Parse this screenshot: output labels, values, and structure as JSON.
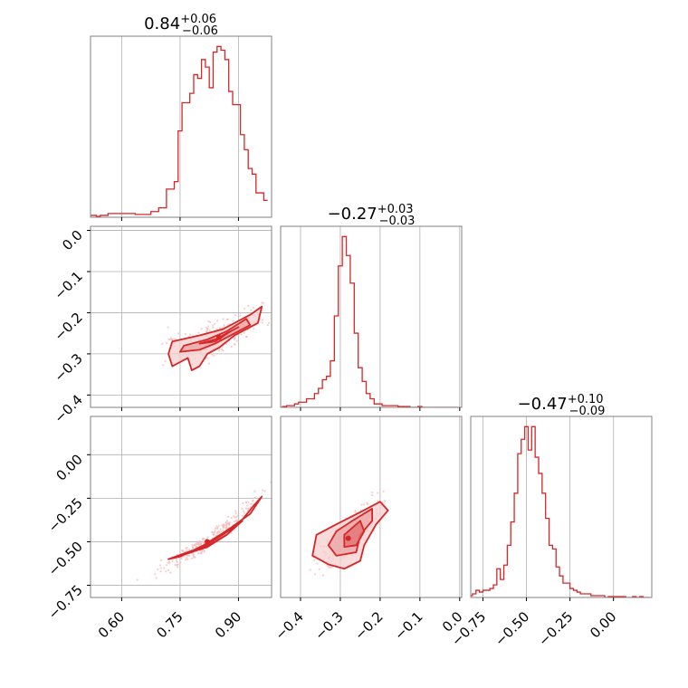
{
  "colors": {
    "accent": "#d62728",
    "fill_light": "#f5cfcf",
    "fill_mid": "#eba3a3",
    "scatter": "#f3b9b9",
    "grid": "#b0b0b0",
    "frame": "#808080"
  },
  "chart_data": [
    {
      "type": "histogram",
      "panel": "diag-1",
      "title": {
        "main": "0.84",
        "upper": "+0.06",
        "lower": "−0.06"
      },
      "x": [
        0.52,
        0.53,
        0.54,
        0.55,
        0.56,
        0.57,
        0.58,
        0.59,
        0.6,
        0.61,
        0.62,
        0.63,
        0.64,
        0.65,
        0.66,
        0.67,
        0.68,
        0.69,
        0.7,
        0.71,
        0.72,
        0.73,
        0.74,
        0.75,
        0.76,
        0.77,
        0.78,
        0.79,
        0.8,
        0.81,
        0.82,
        0.83,
        0.84,
        0.85,
        0.86,
        0.87,
        0.88,
        0.89,
        0.9,
        0.91,
        0.92,
        0.93,
        0.94,
        0.95,
        0.96,
        0.97
      ],
      "values": [
        0.01,
        0.01,
        0.005,
        0.01,
        0.01,
        0.02,
        0.02,
        0.02,
        0.02,
        0.02,
        0.02,
        0.02,
        0.015,
        0.015,
        0.015,
        0.015,
        0.03,
        0.03,
        0.05,
        0.05,
        0.15,
        0.15,
        0.19,
        0.46,
        0.61,
        0.61,
        0.66,
        0.76,
        0.74,
        0.84,
        0.8,
        0.69,
        0.88,
        0.91,
        0.89,
        0.84,
        0.67,
        0.6,
        0.6,
        0.44,
        0.36,
        0.26,
        0.23,
        0.13,
        0.13,
        0.09
      ],
      "xlim": [
        0.52,
        0.985
      ],
      "xticks": [
        0.6,
        0.75,
        0.9
      ]
    },
    {
      "type": "scatter",
      "panel": "pair-2-1",
      "contours": [
        [
          [
            0.73,
            -0.33
          ],
          [
            0.72,
            -0.3
          ],
          [
            0.73,
            -0.27
          ],
          [
            0.8,
            -0.255
          ],
          [
            0.86,
            -0.24
          ],
          [
            0.93,
            -0.205
          ],
          [
            0.96,
            -0.185
          ],
          [
            0.95,
            -0.225
          ],
          [
            0.89,
            -0.255
          ],
          [
            0.85,
            -0.285
          ],
          [
            0.82,
            -0.3
          ],
          [
            0.8,
            -0.33
          ],
          [
            0.78,
            -0.34
          ],
          [
            0.77,
            -0.31
          ],
          [
            0.75,
            -0.32
          ]
        ],
        [
          [
            0.75,
            -0.295
          ],
          [
            0.76,
            -0.28
          ],
          [
            0.82,
            -0.265
          ],
          [
            0.87,
            -0.245
          ],
          [
            0.92,
            -0.215
          ],
          [
            0.93,
            -0.23
          ],
          [
            0.88,
            -0.255
          ],
          [
            0.84,
            -0.275
          ],
          [
            0.8,
            -0.29
          ]
        ],
        [
          [
            0.8,
            -0.275
          ],
          [
            0.84,
            -0.265
          ],
          [
            0.9,
            -0.235
          ],
          [
            0.88,
            -0.245
          ],
          [
            0.84,
            -0.27
          ]
        ]
      ],
      "mode": [
        0.85,
        -0.26
      ],
      "xlim": [
        0.52,
        0.985
      ],
      "ylim": [
        -0.43,
        0.01
      ],
      "xticks": [
        0.6,
        0.75,
        0.9
      ],
      "yticks": [
        0.0,
        -0.1,
        -0.2,
        -0.3,
        -0.4
      ],
      "ytick_labels": [
        "0.0",
        "−0.1",
        "−0.2",
        "−0.3",
        "−0.4"
      ]
    },
    {
      "type": "histogram",
      "panel": "diag-2",
      "title": {
        "main": "−0.27",
        "upper": "+0.03",
        "lower": "−0.03"
      },
      "x": [
        -0.45,
        -0.44,
        -0.43,
        -0.42,
        -0.41,
        -0.4,
        -0.39,
        -0.38,
        -0.37,
        -0.36,
        -0.35,
        -0.34,
        -0.33,
        -0.32,
        -0.31,
        -0.3,
        -0.29,
        -0.28,
        -0.27,
        -0.26,
        -0.25,
        -0.24,
        -0.23,
        -0.22,
        -0.21,
        -0.2,
        -0.19,
        -0.18,
        -0.17,
        -0.16,
        -0.15,
        -0.14,
        -0.13,
        -0.12,
        -0.11,
        -0.1,
        -0.09,
        -0.08,
        -0.07,
        -0.06,
        -0.05,
        -0.04,
        -0.03,
        -0.02,
        -0.01
      ],
      "values": [
        0.0,
        0.005,
        0.01,
        0.01,
        0.02,
        0.03,
        0.03,
        0.05,
        0.05,
        0.08,
        0.11,
        0.16,
        0.18,
        0.27,
        0.53,
        0.82,
        0.99,
        0.88,
        0.72,
        0.43,
        0.23,
        0.15,
        0.08,
        0.05,
        0.02,
        0.02,
        0.01,
        0.01,
        0.01,
        0.01,
        0.005,
        0.005,
        0.005,
        0.0,
        0.0,
        0.005,
        0.0,
        0.0,
        0.0,
        0.0,
        0.0,
        0.0,
        0.0,
        0.0,
        0.0
      ],
      "xlim": [
        -0.45,
        0.005
      ],
      "xticks": [
        -0.4,
        -0.3,
        -0.2,
        -0.1,
        0.0
      ]
    },
    {
      "type": "scatter",
      "panel": "pair-3-1",
      "contours": [
        [
          [
            0.72,
            -0.6
          ],
          [
            0.8,
            -0.535
          ],
          [
            0.86,
            -0.45
          ],
          [
            0.9,
            -0.4
          ],
          [
            0.94,
            -0.29
          ],
          [
            0.96,
            -0.24
          ],
          [
            0.93,
            -0.34
          ],
          [
            0.88,
            -0.42
          ],
          [
            0.82,
            -0.51
          ],
          [
            0.75,
            -0.585
          ]
        ],
        [
          [
            0.75,
            -0.58
          ],
          [
            0.82,
            -0.53
          ],
          [
            0.87,
            -0.46
          ],
          [
            0.91,
            -0.38
          ],
          [
            0.88,
            -0.43
          ],
          [
            0.83,
            -0.5
          ],
          [
            0.78,
            -0.56
          ]
        ],
        [
          [
            0.8,
            -0.545
          ],
          [
            0.84,
            -0.5
          ],
          [
            0.87,
            -0.46
          ],
          [
            0.85,
            -0.485
          ],
          [
            0.82,
            -0.525
          ]
        ]
      ],
      "mode": [
        0.82,
        -0.5
      ],
      "xlim": [
        0.52,
        0.985
      ],
      "ylim": [
        -0.82,
        0.22
      ],
      "xticks": [
        0.6,
        0.75,
        0.9
      ],
      "yticks": [
        0.0,
        -0.25,
        -0.5,
        -0.75
      ],
      "ytick_labels": [
        "0.00",
        "−0.25",
        "−0.50",
        "−0.75"
      ],
      "xtick_labels": [
        "0.60",
        "0.75",
        "0.90"
      ]
    },
    {
      "type": "scatter",
      "panel": "pair-3-2",
      "contours": [
        [
          [
            -0.33,
            -0.63
          ],
          [
            -0.37,
            -0.58
          ],
          [
            -0.36,
            -0.46
          ],
          [
            -0.31,
            -0.4
          ],
          [
            -0.25,
            -0.33
          ],
          [
            -0.2,
            -0.27
          ],
          [
            -0.18,
            -0.32
          ],
          [
            -0.21,
            -0.4
          ],
          [
            -0.24,
            -0.52
          ],
          [
            -0.25,
            -0.61
          ],
          [
            -0.29,
            -0.655
          ]
        ],
        [
          [
            -0.31,
            -0.58
          ],
          [
            -0.33,
            -0.52
          ],
          [
            -0.31,
            -0.44
          ],
          [
            -0.27,
            -0.38
          ],
          [
            -0.22,
            -0.31
          ],
          [
            -0.22,
            -0.38
          ],
          [
            -0.25,
            -0.46
          ],
          [
            -0.26,
            -0.56
          ]
        ],
        [
          [
            -0.29,
            -0.53
          ],
          [
            -0.29,
            -0.46
          ],
          [
            -0.25,
            -0.38
          ],
          [
            -0.24,
            -0.44
          ],
          [
            -0.26,
            -0.52
          ]
        ]
      ],
      "mode": [
        -0.28,
        -0.48
      ],
      "xlim": [
        -0.45,
        0.005
      ],
      "ylim": [
        -0.82,
        0.22
      ],
      "xticks": [
        -0.4,
        -0.3,
        -0.2,
        -0.1,
        0.0
      ],
      "xtick_labels": [
        "−0.4",
        "−0.3",
        "−0.2",
        "−0.1",
        "0.0"
      ]
    },
    {
      "type": "histogram",
      "panel": "diag-3",
      "title": {
        "main": "−0.47",
        "upper": "+0.10",
        "lower": "−0.09"
      },
      "x": [
        -0.82,
        -0.8,
        -0.78,
        -0.76,
        -0.74,
        -0.72,
        -0.7,
        -0.68,
        -0.66,
        -0.64,
        -0.62,
        -0.6,
        -0.58,
        -0.56,
        -0.54,
        -0.52,
        -0.5,
        -0.48,
        -0.46,
        -0.44,
        -0.42,
        -0.4,
        -0.38,
        -0.36,
        -0.34,
        -0.32,
        -0.3,
        -0.28,
        -0.26,
        -0.24,
        -0.22,
        -0.2,
        -0.18,
        -0.16,
        -0.14,
        -0.12,
        -0.1,
        -0.08,
        -0.06,
        -0.04,
        -0.02,
        0.0,
        0.02,
        0.04,
        0.06,
        0.08,
        0.1,
        0.12,
        0.14,
        0.16,
        0.18,
        0.2
      ],
      "values": [
        0.01,
        0.02,
        0.04,
        0.03,
        0.04,
        0.04,
        0.05,
        0.07,
        0.16,
        0.1,
        0.18,
        0.29,
        0.42,
        0.58,
        0.8,
        0.88,
        0.95,
        0.82,
        0.95,
        0.78,
        0.69,
        0.58,
        0.44,
        0.29,
        0.27,
        0.17,
        0.12,
        0.08,
        0.08,
        0.05,
        0.04,
        0.03,
        0.02,
        0.02,
        0.02,
        0.01,
        0.01,
        0.01,
        0.01,
        0.0,
        0.005,
        0.005,
        0.005,
        0.005,
        0.005,
        0.0,
        0.0,
        0.005,
        0.0,
        0.005,
        0.0,
        0.0
      ],
      "xlim": [
        -0.82,
        0.22
      ],
      "xticks": [
        -0.75,
        -0.5,
        -0.25,
        0.0
      ],
      "xtick_labels": [
        "−0.75",
        "−0.50",
        "−0.25",
        "0.00"
      ]
    }
  ]
}
